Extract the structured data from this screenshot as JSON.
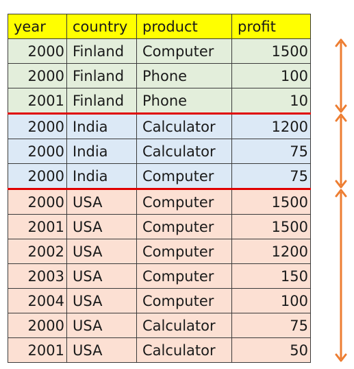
{
  "table": {
    "headers": [
      "year",
      "country",
      "product",
      "profit"
    ],
    "rows": [
      {
        "group": "Finland",
        "year": "2000",
        "country": "Finland",
        "product": "Computer",
        "profit": "1500"
      },
      {
        "group": "Finland",
        "year": "2000",
        "country": "Finland",
        "product": "Phone",
        "profit": "100"
      },
      {
        "group": "Finland",
        "year": "2001",
        "country": "Finland",
        "product": "Phone",
        "profit": "10"
      },
      {
        "group": "India",
        "year": "2000",
        "country": "India",
        "product": "Calculator",
        "profit": "1200"
      },
      {
        "group": "India",
        "year": "2000",
        "country": "India",
        "product": "Calculator",
        "profit": "75"
      },
      {
        "group": "India",
        "year": "2000",
        "country": "India",
        "product": "Computer",
        "profit": "75"
      },
      {
        "group": "USA",
        "year": "2000",
        "country": "USA",
        "product": "Computer",
        "profit": "1500"
      },
      {
        "group": "USA",
        "year": "2001",
        "country": "USA",
        "product": "Computer",
        "profit": "1500"
      },
      {
        "group": "USA",
        "year": "2002",
        "country": "USA",
        "product": "Computer",
        "profit": "1200"
      },
      {
        "group": "USA",
        "year": "2003",
        "country": "USA",
        "product": "Computer",
        "profit": "150"
      },
      {
        "group": "USA",
        "year": "2004",
        "country": "USA",
        "product": "Computer",
        "profit": "100"
      },
      {
        "group": "USA",
        "year": "2000",
        "country": "USA",
        "product": "Calculator",
        "profit": "75"
      },
      {
        "group": "USA",
        "year": "2001",
        "country": "USA",
        "product": "Calculator",
        "profit": "50"
      }
    ]
  },
  "colors": {
    "header_bg": "#ffff00",
    "finland_bg": "#e3eedb",
    "india_bg": "#dce9f6",
    "usa_bg": "#fce0d3",
    "separator": "#e00000",
    "arrow": "#ed7d31"
  },
  "group_arrows": [
    {
      "group": "Finland",
      "icon": "double-arrow-vertical-icon"
    },
    {
      "group": "India",
      "icon": "double-arrow-vertical-icon"
    },
    {
      "group": "USA",
      "icon": "double-arrow-vertical-icon"
    }
  ]
}
